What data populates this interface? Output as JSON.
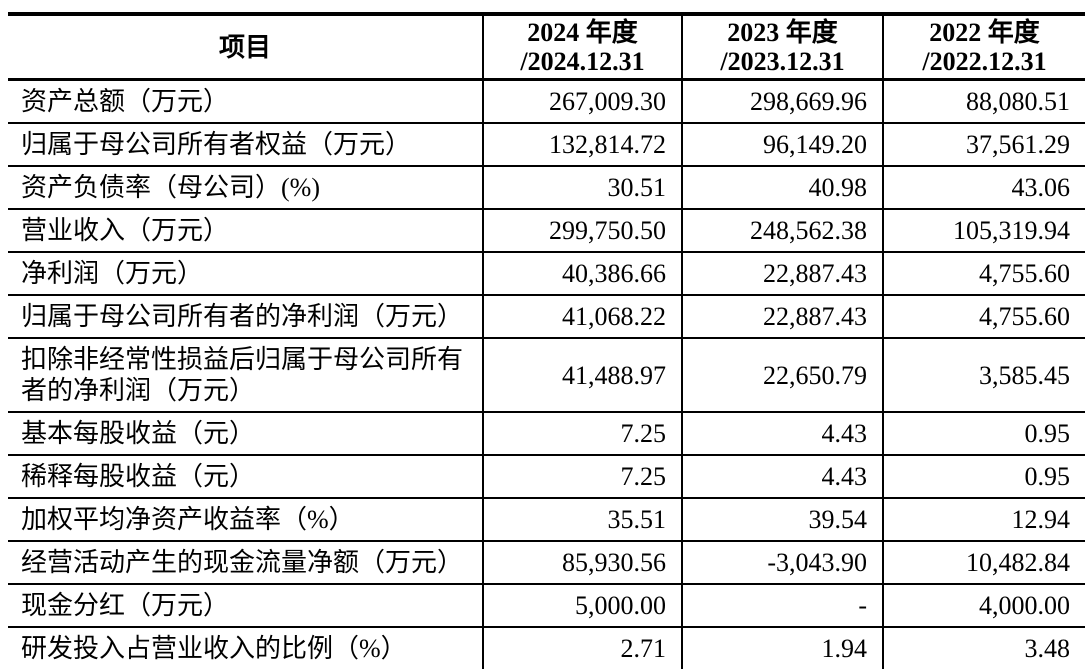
{
  "table": {
    "header": {
      "item": "项目",
      "columns": [
        {
          "line1": "2024 年度",
          "line2": "/2024.12.31"
        },
        {
          "line1": "2023 年度",
          "line2": "/2023.12.31"
        },
        {
          "line1": "2022 年度",
          "line2": "/2022.12.31"
        }
      ]
    },
    "rows": [
      {
        "label": "资产总额（万元）",
        "values": [
          "267,009.30",
          "298,669.96",
          "88,080.51"
        ]
      },
      {
        "label": "归属于母公司所有者权益（万元）",
        "values": [
          "132,814.72",
          "96,149.20",
          "37,561.29"
        ]
      },
      {
        "label": "资产负债率（母公司）(%)",
        "values": [
          "30.51",
          "40.98",
          "43.06"
        ]
      },
      {
        "label": "营业收入（万元）",
        "values": [
          "299,750.50",
          "248,562.38",
          "105,319.94"
        ]
      },
      {
        "label": "净利润（万元）",
        "values": [
          "40,386.66",
          "22,887.43",
          "4,755.60"
        ]
      },
      {
        "label": "归属于母公司所有者的净利润（万元）",
        "values": [
          "41,068.22",
          "22,887.43",
          "4,755.60"
        ]
      },
      {
        "label": "扣除非经常性损益后归属于母公司所有者的净利润（万元）",
        "values": [
          "41,488.97",
          "22,650.79",
          "3,585.45"
        ]
      },
      {
        "label": "基本每股收益（元）",
        "values": [
          "7.25",
          "4.43",
          "0.95"
        ]
      },
      {
        "label": "稀释每股收益（元）",
        "values": [
          "7.25",
          "4.43",
          "0.95"
        ]
      },
      {
        "label": "加权平均净资产收益率（%）",
        "values": [
          "35.51",
          "39.54",
          "12.94"
        ]
      },
      {
        "label": "经营活动产生的现金流量净额（万元）",
        "values": [
          "85,930.56",
          "-3,043.90",
          "10,482.84"
        ]
      },
      {
        "label": "现金分红（万元）",
        "values": [
          "5,000.00",
          "-",
          "4,000.00"
        ]
      },
      {
        "label": "研发投入占营业收入的比例（%）",
        "values": [
          "2.71",
          "1.94",
          "3.48"
        ]
      }
    ]
  }
}
